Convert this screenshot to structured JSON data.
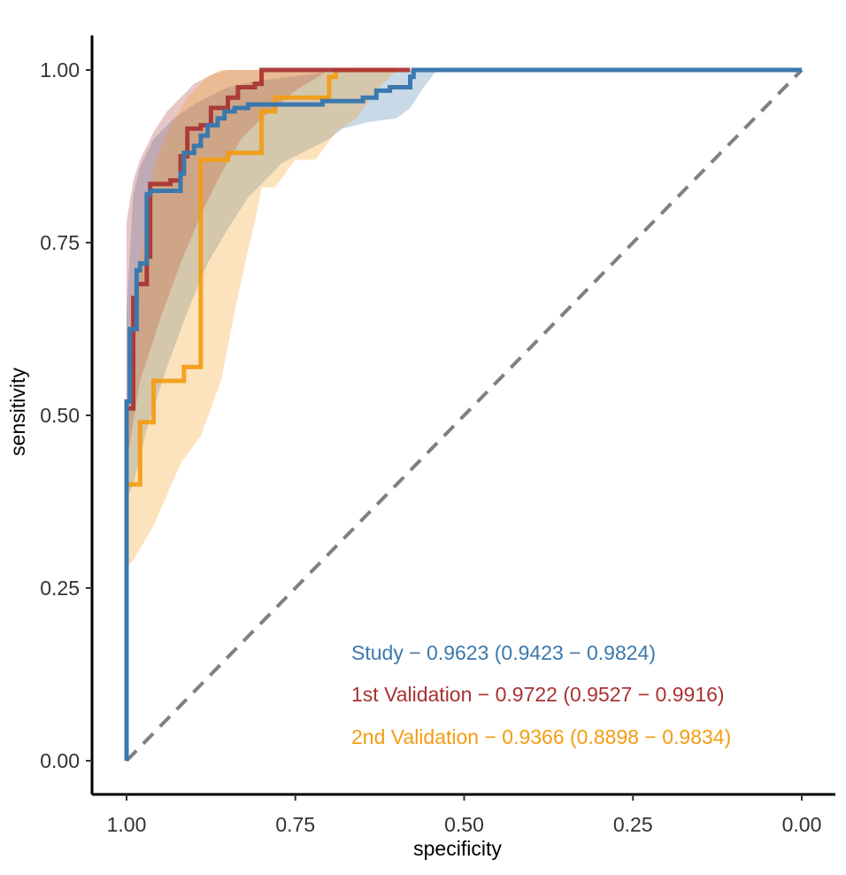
{
  "chart_data": {
    "type": "line",
    "subtype": "roc_curve_with_confidence_bands",
    "xlabel": "specificity",
    "ylabel": "sensitivity",
    "xlim": [
      1.0,
      0.0
    ],
    "ylim": [
      0.0,
      1.0
    ],
    "x_ticks": [
      1.0,
      0.75,
      0.5,
      0.25,
      0.0
    ],
    "x_tick_labels": [
      "1.00",
      "0.75",
      "0.50",
      "0.25",
      "0.00"
    ],
    "y_ticks": [
      0.0,
      0.25,
      0.5,
      0.75,
      1.0
    ],
    "y_tick_labels": [
      "0.00",
      "0.25",
      "0.50",
      "0.75",
      "1.00"
    ],
    "grid": false,
    "legend_position": "bottom-right",
    "reference_line": {
      "from": [
        1.0,
        0.0
      ],
      "to": [
        0.0,
        1.0
      ],
      "style": "dashed",
      "color": "#808080"
    },
    "series": [
      {
        "name": "Study",
        "label": "Study − 0.9623 (0.9423 − 0.9824)",
        "auc": 0.9623,
        "ci": [
          0.9423,
          0.9824
        ],
        "color": "#3b78ad",
        "points": [
          [
            1.0,
            0.0
          ],
          [
            1.0,
            0.52
          ],
          [
            0.995,
            0.52
          ],
          [
            0.995,
            0.625
          ],
          [
            0.985,
            0.625
          ],
          [
            0.985,
            0.71
          ],
          [
            0.98,
            0.71
          ],
          [
            0.98,
            0.72
          ],
          [
            0.97,
            0.72
          ],
          [
            0.97,
            0.82
          ],
          [
            0.965,
            0.82
          ],
          [
            0.965,
            0.825
          ],
          [
            0.92,
            0.825
          ],
          [
            0.92,
            0.85
          ],
          [
            0.915,
            0.85
          ],
          [
            0.915,
            0.88
          ],
          [
            0.9,
            0.88
          ],
          [
            0.9,
            0.89
          ],
          [
            0.89,
            0.89
          ],
          [
            0.89,
            0.905
          ],
          [
            0.88,
            0.905
          ],
          [
            0.88,
            0.92
          ],
          [
            0.865,
            0.92
          ],
          [
            0.865,
            0.93
          ],
          [
            0.855,
            0.93
          ],
          [
            0.855,
            0.94
          ],
          [
            0.84,
            0.94
          ],
          [
            0.84,
            0.945
          ],
          [
            0.82,
            0.945
          ],
          [
            0.82,
            0.95
          ],
          [
            0.71,
            0.95
          ],
          [
            0.71,
            0.955
          ],
          [
            0.65,
            0.955
          ],
          [
            0.65,
            0.96
          ],
          [
            0.63,
            0.96
          ],
          [
            0.63,
            0.97
          ],
          [
            0.61,
            0.97
          ],
          [
            0.61,
            0.975
          ],
          [
            0.58,
            0.975
          ],
          [
            0.58,
            0.99
          ],
          [
            0.575,
            0.99
          ],
          [
            0.575,
            1.0
          ],
          [
            0.0,
            1.0
          ]
        ],
        "ci_band": {
          "upper": [
            [
              1.0,
              0.65
            ],
            [
              0.99,
              0.82
            ],
            [
              0.98,
              0.86
            ],
            [
              0.96,
              0.9
            ],
            [
              0.93,
              0.93
            ],
            [
              0.9,
              0.95
            ],
            [
              0.87,
              0.965
            ],
            [
              0.85,
              0.975
            ],
            [
              0.8,
              0.985
            ],
            [
              0.72,
              0.995
            ],
            [
              0.65,
              1.0
            ],
            [
              0.55,
              1.0
            ],
            [
              0.5,
              1.0
            ]
          ],
          "lower": [
            [
              0.5,
              1.0
            ],
            [
              0.54,
              1.0
            ],
            [
              0.56,
              0.975
            ],
            [
              0.58,
              0.945
            ],
            [
              0.6,
              0.93
            ],
            [
              0.64,
              0.925
            ],
            [
              0.68,
              0.915
            ],
            [
              0.7,
              0.9
            ],
            [
              0.72,
              0.89
            ],
            [
              0.77,
              0.865
            ],
            [
              0.8,
              0.835
            ],
            [
              0.82,
              0.815
            ],
            [
              0.85,
              0.77
            ],
            [
              0.88,
              0.72
            ],
            [
              0.91,
              0.65
            ],
            [
              0.94,
              0.57
            ],
            [
              0.97,
              0.48
            ],
            [
              0.99,
              0.4
            ],
            [
              1.0,
              0.38
            ]
          ]
        }
      },
      {
        "name": "1st Validation",
        "label": "1st Validation − 0.9722 (0.9527 − 0.9916)",
        "auc": 0.9722,
        "ci": [
          0.9527,
          0.9916
        ],
        "color": "#a83232",
        "points": [
          [
            1.0,
            0.0
          ],
          [
            1.0,
            0.51
          ],
          [
            0.99,
            0.51
          ],
          [
            0.99,
            0.67
          ],
          [
            0.985,
            0.67
          ],
          [
            0.985,
            0.69
          ],
          [
            0.97,
            0.69
          ],
          [
            0.97,
            0.73
          ],
          [
            0.965,
            0.73
          ],
          [
            0.965,
            0.835
          ],
          [
            0.935,
            0.835
          ],
          [
            0.935,
            0.84
          ],
          [
            0.92,
            0.84
          ],
          [
            0.92,
            0.875
          ],
          [
            0.91,
            0.875
          ],
          [
            0.91,
            0.915
          ],
          [
            0.89,
            0.915
          ],
          [
            0.89,
            0.92
          ],
          [
            0.875,
            0.92
          ],
          [
            0.875,
            0.945
          ],
          [
            0.85,
            0.945
          ],
          [
            0.85,
            0.96
          ],
          [
            0.835,
            0.96
          ],
          [
            0.835,
            0.975
          ],
          [
            0.81,
            0.975
          ],
          [
            0.81,
            0.98
          ],
          [
            0.8,
            0.98
          ],
          [
            0.8,
            1.0
          ],
          [
            0.58,
            1.0
          ]
        ],
        "ci_band": {
          "upper": [
            [
              1.0,
              0.78
            ],
            [
              0.99,
              0.84
            ],
            [
              0.98,
              0.87
            ],
            [
              0.96,
              0.91
            ],
            [
              0.94,
              0.94
            ],
            [
              0.92,
              0.96
            ],
            [
              0.9,
              0.98
            ],
            [
              0.87,
              0.995
            ],
            [
              0.85,
              1.0
            ],
            [
              0.6,
              1.0
            ]
          ],
          "lower": [
            [
              0.6,
              1.0
            ],
            [
              0.7,
              1.0
            ],
            [
              0.75,
              0.97
            ],
            [
              0.8,
              0.93
            ],
            [
              0.83,
              0.9
            ],
            [
              0.86,
              0.85
            ],
            [
              0.89,
              0.79
            ],
            [
              0.92,
              0.72
            ],
            [
              0.95,
              0.64
            ],
            [
              0.98,
              0.55
            ],
            [
              0.99,
              0.49
            ],
            [
              1.0,
              0.43
            ]
          ]
        }
      },
      {
        "name": "2nd Validation",
        "label": "2nd Validation − 0.9366 (0.8898 − 0.9834)",
        "auc": 0.9366,
        "ci": [
          0.8898,
          0.9834
        ],
        "color": "#f39c12",
        "points": [
          [
            1.0,
            0.0
          ],
          [
            1.0,
            0.4
          ],
          [
            0.98,
            0.4
          ],
          [
            0.98,
            0.49
          ],
          [
            0.96,
            0.49
          ],
          [
            0.96,
            0.55
          ],
          [
            0.915,
            0.55
          ],
          [
            0.915,
            0.57
          ],
          [
            0.89,
            0.57
          ],
          [
            0.89,
            0.87
          ],
          [
            0.85,
            0.87
          ],
          [
            0.85,
            0.88
          ],
          [
            0.8,
            0.88
          ],
          [
            0.8,
            0.94
          ],
          [
            0.78,
            0.94
          ],
          [
            0.78,
            0.96
          ],
          [
            0.7,
            0.96
          ],
          [
            0.7,
            0.99
          ],
          [
            0.69,
            0.99
          ],
          [
            0.69,
            1.0
          ],
          [
            0.6,
            1.0
          ]
        ],
        "ci_band": {
          "upper": [
            [
              1.0,
              0.47
            ],
            [
              0.99,
              0.55
            ],
            [
              0.98,
              0.72
            ],
            [
              0.96,
              0.86
            ],
            [
              0.94,
              0.91
            ],
            [
              0.91,
              0.96
            ],
            [
              0.88,
              0.99
            ],
            [
              0.86,
              1.0
            ],
            [
              0.6,
              1.0
            ]
          ],
          "lower": [
            [
              0.6,
              1.0
            ],
            [
              0.63,
              0.97
            ],
            [
              0.66,
              0.93
            ],
            [
              0.69,
              0.91
            ],
            [
              0.72,
              0.87
            ],
            [
              0.75,
              0.87
            ],
            [
              0.78,
              0.83
            ],
            [
              0.8,
              0.83
            ],
            [
              0.81,
              0.78
            ],
            [
              0.82,
              0.74
            ],
            [
              0.84,
              0.65
            ],
            [
              0.86,
              0.55
            ],
            [
              0.89,
              0.47
            ],
            [
              0.92,
              0.43
            ],
            [
              0.96,
              0.34
            ],
            [
              0.99,
              0.29
            ],
            [
              1.0,
              0.28
            ]
          ]
        }
      }
    ]
  }
}
